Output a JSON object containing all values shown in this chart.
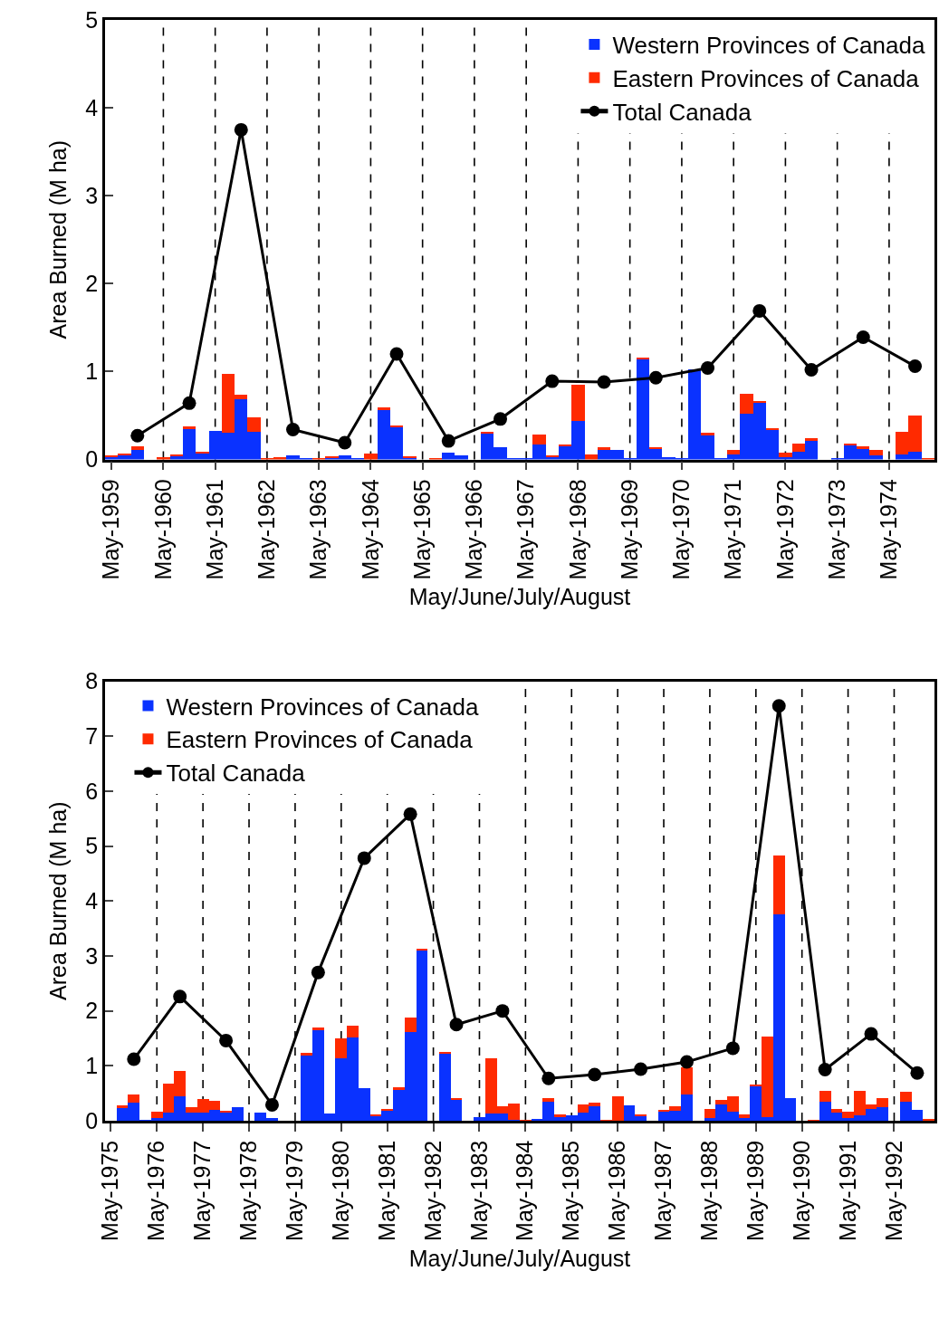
{
  "chart_data": [
    {
      "type": "bar",
      "stacked": true,
      "xlabel": "May/June/July/August",
      "ylabel": "Area Burned (M ha)",
      "ylim": [
        0,
        5
      ],
      "yticks": [
        0,
        1,
        2,
        3,
        4,
        5
      ],
      "grid": "x",
      "legend": "top right",
      "categories": [
        "May-1959",
        null,
        null,
        null,
        "May-1960",
        null,
        null,
        null,
        "May-1961",
        null,
        null,
        null,
        "May-1962",
        null,
        null,
        null,
        "May-1963",
        null,
        null,
        null,
        "May-1964",
        null,
        null,
        null,
        "May-1965",
        null,
        null,
        null,
        "May-1966",
        null,
        null,
        null,
        "May-1967",
        null,
        null,
        null,
        "May-1968",
        null,
        null,
        null,
        "May-1969",
        null,
        null,
        null,
        "May-1970",
        null,
        null,
        null,
        "May-1971",
        null,
        null,
        null,
        "May-1972",
        null,
        null,
        null,
        "May-1973",
        null,
        null,
        null,
        "May-1974",
        null,
        null,
        null
      ],
      "series": [
        {
          "name": "Western Provinces of Canada",
          "color": "#0a32ff",
          "values": [
            0.03,
            0.05,
            0.11,
            0,
            0,
            0.04,
            0.35,
            0.07,
            0.32,
            0.3,
            0.68,
            0.31,
            0,
            0,
            0.05,
            0.01,
            0,
            0.02,
            0.05,
            0.01,
            0,
            0.57,
            0.37,
            0.02,
            0,
            0,
            0.08,
            0.05,
            0,
            0.3,
            0.14,
            0.01,
            0.01,
            0.17,
            0.03,
            0.15,
            0.44,
            0,
            0.11,
            0.11,
            0.01,
            1.14,
            0.12,
            0.03,
            0.01,
            1.02,
            0.28,
            0.01,
            0.06,
            0.52,
            0.65,
            0.34,
            0.03,
            0.09,
            0.22,
            0,
            0.02,
            0.16,
            0.12,
            0.05,
            0,
            0.06,
            0.09,
            0
          ]
        },
        {
          "name": "Eastern Provinces of Canada",
          "color": "#ff2a00",
          "values": [
            0.01,
            0.01,
            0.04,
            0,
            0.03,
            0.01,
            0.03,
            0.02,
            0,
            0.67,
            0.06,
            0.17,
            0.02,
            0.03,
            0,
            0,
            0.02,
            0.02,
            0,
            0,
            0.07,
            0.02,
            0.01,
            0.02,
            0,
            0.01,
            0,
            0,
            0,
            0.01,
            0,
            0,
            0,
            0.11,
            0.01,
            0.02,
            0.41,
            0.06,
            0.03,
            0,
            0,
            0.01,
            0.01,
            0,
            0,
            0,
            0.02,
            0,
            0.05,
            0.23,
            0.01,
            0.01,
            0.05,
            0.09,
            0.02,
            0,
            0,
            0.02,
            0.03,
            0.06,
            0,
            0.25,
            0.41,
            0.01
          ]
        },
        {
          "name": "Total Canada",
          "type": "line",
          "color": "#000000",
          "marker": "circle",
          "line_style": "solid",
          "values": [
            null,
            null,
            0.27,
            null,
            null,
            null,
            0.64,
            null,
            null,
            null,
            3.75,
            null,
            null,
            null,
            0.34,
            null,
            null,
            null,
            0.19,
            null,
            null,
            null,
            1.2,
            null,
            null,
            null,
            0.21,
            null,
            null,
            null,
            0.46,
            null,
            null,
            null,
            0.89,
            null,
            null,
            null,
            0.88,
            null,
            null,
            null,
            0.93,
            null,
            null,
            null,
            1.04,
            null,
            null,
            null,
            1.69,
            null,
            null,
            null,
            1.02,
            null,
            null,
            null,
            1.39,
            null,
            null,
            null,
            1.06,
            null
          ]
        }
      ]
    },
    {
      "type": "bar",
      "stacked": true,
      "xlabel": "May/June/July/August",
      "ylabel": "Area Burned (M ha)",
      "ylim": [
        0,
        8
      ],
      "yticks": [
        0,
        1,
        2,
        3,
        4,
        5,
        6,
        7,
        8
      ],
      "grid": "x",
      "legend": "top left",
      "categories": [
        "May-1975",
        null,
        null,
        null,
        "May-1976",
        null,
        null,
        null,
        "May-1977",
        null,
        null,
        null,
        "May-1978",
        null,
        null,
        null,
        "May-1979",
        null,
        null,
        null,
        "May-1980",
        null,
        null,
        null,
        "May-1981",
        null,
        null,
        null,
        "May-1982",
        null,
        null,
        null,
        "May-1983",
        null,
        null,
        null,
        "May-1984",
        null,
        null,
        null,
        "May-1985",
        null,
        null,
        null,
        "May-1986",
        null,
        null,
        null,
        "May-1987",
        null,
        null,
        null,
        "May-1988",
        null,
        null,
        null,
        "May-1989",
        null,
        null,
        null,
        "May-1990",
        null,
        null,
        null,
        "May-1991",
        null,
        null,
        null,
        "May-1992",
        null,
        null,
        null
      ],
      "series": [
        {
          "name": "Western Provinces of Canada",
          "color": "#0a32ff",
          "values": [
            0,
            0.24,
            0.33,
            0.01,
            0.05,
            0.16,
            0.46,
            0.16,
            0.15,
            0.21,
            0.16,
            0.26,
            0,
            0.16,
            0.06,
            0,
            0,
            1.19,
            1.66,
            0.14,
            1.14,
            1.52,
            0.6,
            0.1,
            0.19,
            0.57,
            1.62,
            3.1,
            0,
            1.24,
            0.4,
            0,
            0.07,
            0.14,
            0.14,
            0.03,
            0,
            0.04,
            0.36,
            0.08,
            0.1,
            0.16,
            0.28,
            0,
            0,
            0.29,
            0.1,
            0,
            0.18,
            0.19,
            0.48,
            0,
            0.05,
            0.31,
            0.17,
            0.05,
            0.65,
            0.08,
            3.76,
            0.42,
            0,
            0,
            0.36,
            0.15,
            0.05,
            0.11,
            0.22,
            0.26,
            0,
            0.35,
            0.2,
            0
          ]
        },
        {
          "name": "Eastern Provinces of Canada",
          "color": "#ff2a00",
          "values": [
            0,
            0.05,
            0.16,
            0,
            0.13,
            0.52,
            0.45,
            0.1,
            0.25,
            0.16,
            0.03,
            0,
            0,
            0,
            0,
            0,
            0,
            0.05,
            0.04,
            0,
            0.37,
            0.22,
            0,
            0.01,
            0.04,
            0.05,
            0.27,
            0.04,
            0,
            0.02,
            0.01,
            0,
            0,
            1.01,
            0.13,
            0.29,
            0.01,
            0,
            0.06,
            0.04,
            0,
            0.14,
            0.05,
            0.01,
            0.45,
            0,
            0.03,
            0,
            0.03,
            0.08,
            0.5,
            0,
            0.17,
            0.08,
            0.29,
            0.08,
            0.01,
            1.46,
            1.07,
            0,
            0,
            0.01,
            0.2,
            0.07,
            0.13,
            0.44,
            0.08,
            0.16,
            0,
            0.18,
            0,
            0.04
          ]
        },
        {
          "name": "Total Canada",
          "type": "line",
          "color": "#000000",
          "marker": "circle",
          "line_style": "solid",
          "values": [
            null,
            null,
            1.12,
            null,
            null,
            null,
            2.26,
            null,
            null,
            null,
            1.46,
            null,
            null,
            null,
            0.29,
            null,
            null,
            null,
            2.7,
            null,
            null,
            null,
            4.78,
            null,
            null,
            null,
            5.58,
            null,
            null,
            null,
            1.75,
            null,
            null,
            null,
            2.0,
            null,
            null,
            null,
            0.77,
            null,
            null,
            null,
            0.84,
            null,
            null,
            null,
            0.94,
            null,
            null,
            null,
            1.07,
            null,
            null,
            null,
            1.32,
            null,
            null,
            null,
            7.55,
            null,
            null,
            null,
            0.93,
            null,
            null,
            null,
            1.58,
            null,
            null,
            null,
            0.87,
            null
          ]
        }
      ]
    }
  ]
}
